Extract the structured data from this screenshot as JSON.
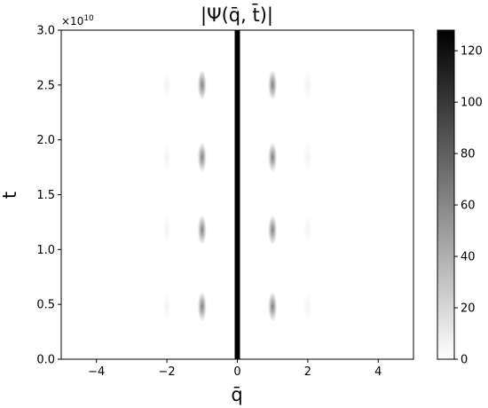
{
  "chart_data": {
    "type": "heatmap",
    "title": "|Ψ(q̄, t̄)|",
    "xlabel": "q̄",
    "ylabel": "t̄",
    "xlim": [
      -5,
      5
    ],
    "ylim": [
      0,
      3.0
    ],
    "y_multiplier_label": "×10",
    "y_multiplier_exponent": "10",
    "x_ticks": [
      -4,
      -2,
      0,
      2,
      4
    ],
    "x_tick_labels": [
      "−4",
      "−2",
      "0",
      "2",
      "4"
    ],
    "y_ticks": [
      0.0,
      0.5,
      1.0,
      1.5,
      2.0,
      2.5,
      3.0
    ],
    "y_tick_labels": [
      "0.0",
      "0.5",
      "1.0",
      "1.5",
      "2.0",
      "2.5",
      "3.0"
    ],
    "colormap": "gray_r",
    "color_min": 0,
    "color_max": 128,
    "colorbar_ticks": [
      0,
      20,
      40,
      60,
      80,
      100,
      120
    ],
    "colorbar_tick_labels": [
      "0",
      "20",
      "40",
      "60",
      "80",
      "100",
      "120"
    ],
    "central_band": {
      "q": 0,
      "value": 128
    },
    "blobs": [
      {
        "q": -1,
        "t": 0.48,
        "value": 40
      },
      {
        "q": 1,
        "t": 0.48,
        "value": 40
      },
      {
        "q": -1,
        "t": 1.18,
        "value": 40
      },
      {
        "q": 1,
        "t": 1.18,
        "value": 40
      },
      {
        "q": -1,
        "t": 1.84,
        "value": 40
      },
      {
        "q": 1,
        "t": 1.84,
        "value": 40
      },
      {
        "q": -1,
        "t": 2.5,
        "value": 40
      },
      {
        "q": 1,
        "t": 2.5,
        "value": 40
      },
      {
        "q": -2,
        "t": 0.48,
        "value": 4
      },
      {
        "q": 2,
        "t": 0.48,
        "value": 4
      },
      {
        "q": -2,
        "t": 1.18,
        "value": 4
      },
      {
        "q": 2,
        "t": 1.18,
        "value": 4
      },
      {
        "q": -2,
        "t": 1.84,
        "value": 4
      },
      {
        "q": 2,
        "t": 1.84,
        "value": 4
      },
      {
        "q": -2,
        "t": 2.5,
        "value": 4
      },
      {
        "q": 2,
        "t": 2.5,
        "value": 4
      }
    ]
  }
}
